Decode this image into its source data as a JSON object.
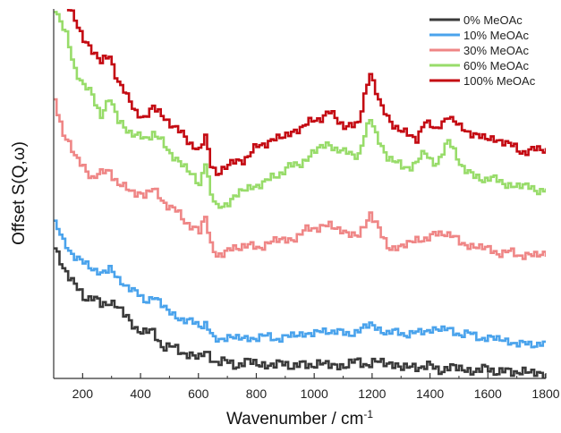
{
  "chart_data": {
    "type": "line",
    "title": "",
    "xlabel": "Wavenumber / cm",
    "xlabel_superscript": "-1",
    "ylabel": "Offset S(Q,ω)",
    "xlim": [
      100,
      1800
    ],
    "ylim": [
      0,
      10
    ],
    "x_ticks": [
      200,
      400,
      600,
      800,
      1000,
      1200,
      1400,
      1600,
      1800
    ],
    "y_ticks_labeled": false,
    "grid": false,
    "legend_position": "top-right",
    "step": 10,
    "series": [
      {
        "name": "0% MeOAc",
        "color": "#3a3a3a",
        "offset": 0.0,
        "amp": 0.7,
        "points": [
          [
            100,
            3.6
          ],
          [
            130,
            3.0
          ],
          [
            170,
            2.5
          ],
          [
            200,
            2.2
          ],
          [
            230,
            2.2
          ],
          [
            260,
            2.0
          ],
          [
            290,
            2.1
          ],
          [
            320,
            1.85
          ],
          [
            350,
            1.7
          ],
          [
            380,
            1.35
          ],
          [
            410,
            1.25
          ],
          [
            440,
            1.2
          ],
          [
            470,
            0.95
          ],
          [
            500,
            0.85
          ],
          [
            550,
            0.65
          ],
          [
            600,
            0.6
          ],
          [
            620,
            0.72
          ],
          [
            650,
            0.45
          ],
          [
            700,
            0.42
          ],
          [
            800,
            0.4
          ],
          [
            900,
            0.36
          ],
          [
            1000,
            0.38
          ],
          [
            1100,
            0.36
          ],
          [
            1180,
            0.45
          ],
          [
            1250,
            0.4
          ],
          [
            1300,
            0.32
          ],
          [
            1400,
            0.3
          ],
          [
            1500,
            0.25
          ],
          [
            1600,
            0.22
          ],
          [
            1700,
            0.18
          ],
          [
            1800,
            0.12
          ]
        ]
      },
      {
        "name": "10% MeOAc",
        "color": "#4aa3ec",
        "offset": 0.0,
        "amp": 0.55,
        "points": [
          [
            100,
            4.2
          ],
          [
            130,
            3.65
          ],
          [
            170,
            3.35
          ],
          [
            200,
            3.1
          ],
          [
            230,
            2.95
          ],
          [
            260,
            2.85
          ],
          [
            290,
            3.0
          ],
          [
            320,
            2.65
          ],
          [
            350,
            2.5
          ],
          [
            380,
            2.3
          ],
          [
            410,
            2.15
          ],
          [
            440,
            2.2
          ],
          [
            470,
            1.95
          ],
          [
            500,
            1.8
          ],
          [
            550,
            1.55
          ],
          [
            600,
            1.45
          ],
          [
            620,
            1.5
          ],
          [
            650,
            1.05
          ],
          [
            700,
            1.1
          ],
          [
            800,
            1.1
          ],
          [
            900,
            1.12
          ],
          [
            1000,
            1.25
          ],
          [
            1050,
            1.28
          ],
          [
            1100,
            1.22
          ],
          [
            1150,
            1.28
          ],
          [
            1190,
            1.45
          ],
          [
            1250,
            1.25
          ],
          [
            1300,
            1.2
          ],
          [
            1400,
            1.3
          ],
          [
            1460,
            1.35
          ],
          [
            1500,
            1.2
          ],
          [
            1600,
            1.1
          ],
          [
            1700,
            0.95
          ],
          [
            1800,
            0.9
          ]
        ]
      },
      {
        "name": "30% MeOAc",
        "color": "#ef8686",
        "offset": 0.0,
        "amp": 0.6,
        "points": [
          [
            100,
            7.6
          ],
          [
            130,
            6.6
          ],
          [
            170,
            6.0
          ],
          [
            200,
            5.75
          ],
          [
            230,
            5.45
          ],
          [
            260,
            5.5
          ],
          [
            290,
            5.65
          ],
          [
            320,
            5.25
          ],
          [
            350,
            5.15
          ],
          [
            380,
            5.0
          ],
          [
            410,
            4.95
          ],
          [
            440,
            5.15
          ],
          [
            470,
            4.85
          ],
          [
            500,
            4.6
          ],
          [
            550,
            4.3
          ],
          [
            600,
            3.95
          ],
          [
            620,
            4.35
          ],
          [
            640,
            3.6
          ],
          [
            660,
            3.35
          ],
          [
            700,
            3.45
          ],
          [
            750,
            3.6
          ],
          [
            800,
            3.55
          ],
          [
            850,
            3.7
          ],
          [
            900,
            3.75
          ],
          [
            950,
            3.9
          ],
          [
            1000,
            4.1
          ],
          [
            1050,
            4.15
          ],
          [
            1100,
            3.95
          ],
          [
            1150,
            3.85
          ],
          [
            1190,
            4.5
          ],
          [
            1230,
            3.8
          ],
          [
            1250,
            3.6
          ],
          [
            1300,
            3.55
          ],
          [
            1350,
            3.75
          ],
          [
            1400,
            3.85
          ],
          [
            1450,
            3.95
          ],
          [
            1500,
            3.7
          ],
          [
            1550,
            3.55
          ],
          [
            1600,
            3.5
          ],
          [
            1650,
            3.4
          ],
          [
            1700,
            3.35
          ],
          [
            1800,
            3.35
          ]
        ]
      },
      {
        "name": "60% MeOAc",
        "color": "#98dc6a",
        "offset": 0.0,
        "amp": 0.6,
        "points": [
          [
            100,
            10.0
          ],
          [
            140,
            9.3
          ],
          [
            170,
            8.4
          ],
          [
            200,
            7.85
          ],
          [
            230,
            7.7
          ],
          [
            260,
            7.15
          ],
          [
            290,
            7.55
          ],
          [
            320,
            6.95
          ],
          [
            350,
            6.75
          ],
          [
            380,
            6.6
          ],
          [
            410,
            6.45
          ],
          [
            440,
            6.65
          ],
          [
            470,
            6.4
          ],
          [
            500,
            6.1
          ],
          [
            550,
            5.7
          ],
          [
            600,
            5.25
          ],
          [
            620,
            5.95
          ],
          [
            640,
            4.95
          ],
          [
            660,
            4.55
          ],
          [
            700,
            4.8
          ],
          [
            750,
            5.1
          ],
          [
            800,
            5.2
          ],
          [
            850,
            5.45
          ],
          [
            900,
            5.65
          ],
          [
            950,
            5.85
          ],
          [
            1000,
            6.15
          ],
          [
            1050,
            6.35
          ],
          [
            1100,
            6.1
          ],
          [
            1150,
            6.05
          ],
          [
            1190,
            7.05
          ],
          [
            1230,
            6.25
          ],
          [
            1250,
            5.95
          ],
          [
            1300,
            5.75
          ],
          [
            1350,
            5.8
          ],
          [
            1380,
            6.1
          ],
          [
            1420,
            5.8
          ],
          [
            1460,
            6.45
          ],
          [
            1500,
            5.8
          ],
          [
            1550,
            5.45
          ],
          [
            1600,
            5.4
          ],
          [
            1650,
            5.3
          ],
          [
            1700,
            5.2
          ],
          [
            1750,
            5.15
          ],
          [
            1800,
            5.1
          ]
        ]
      },
      {
        "name": "100% MeOAc",
        "color": "#c40a12",
        "offset": 0.0,
        "amp": 0.6,
        "points": [
          [
            120,
            10.3
          ],
          [
            150,
            10.0
          ],
          [
            170,
            9.7
          ],
          [
            200,
            9.2
          ],
          [
            230,
            8.85
          ],
          [
            260,
            8.55
          ],
          [
            290,
            8.75
          ],
          [
            320,
            8.05
          ],
          [
            350,
            7.55
          ],
          [
            380,
            7.25
          ],
          [
            410,
            7.05
          ],
          [
            440,
            7.35
          ],
          [
            470,
            7.1
          ],
          [
            500,
            6.9
          ],
          [
            550,
            6.55
          ],
          [
            600,
            6.1
          ],
          [
            620,
            6.55
          ],
          [
            640,
            5.85
          ],
          [
            660,
            5.55
          ],
          [
            700,
            5.75
          ],
          [
            750,
            5.95
          ],
          [
            800,
            6.25
          ],
          [
            850,
            6.45
          ],
          [
            900,
            6.6
          ],
          [
            950,
            6.75
          ],
          [
            1000,
            7.05
          ],
          [
            1050,
            7.15
          ],
          [
            1100,
            6.85
          ],
          [
            1150,
            6.9
          ],
          [
            1190,
            8.3
          ],
          [
            1230,
            7.3
          ],
          [
            1250,
            7.05
          ],
          [
            1300,
            6.65
          ],
          [
            1350,
            6.5
          ],
          [
            1380,
            7.0
          ],
          [
            1420,
            6.65
          ],
          [
            1460,
            7.2
          ],
          [
            1500,
            6.75
          ],
          [
            1550,
            6.6
          ],
          [
            1600,
            6.5
          ],
          [
            1650,
            6.4
          ],
          [
            1700,
            6.2
          ],
          [
            1750,
            6.15
          ],
          [
            1800,
            6.2
          ]
        ]
      }
    ]
  }
}
